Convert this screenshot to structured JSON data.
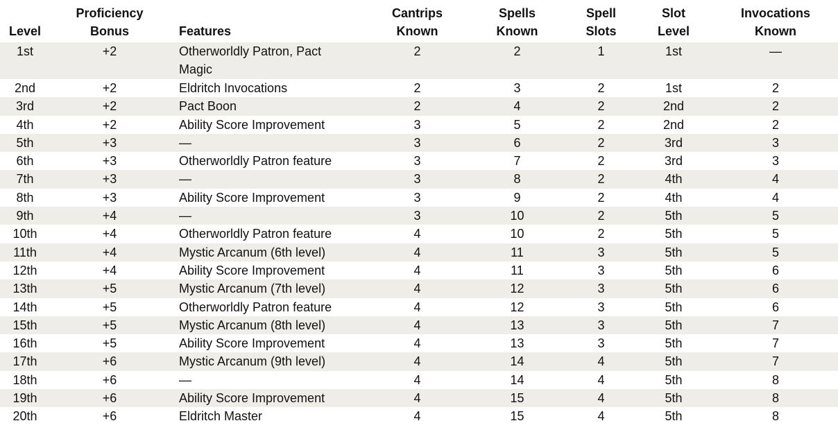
{
  "columns": [
    {
      "line1": "",
      "line2": "Level"
    },
    {
      "line1": "Proficiency",
      "line2": "Bonus"
    },
    {
      "line1": "",
      "line2": "Features"
    },
    {
      "line1": "Cantrips",
      "line2": "Known"
    },
    {
      "line1": "Spells",
      "line2": "Known"
    },
    {
      "line1": "Spell",
      "line2": "Slots"
    },
    {
      "line1": "Slot",
      "line2": "Level"
    },
    {
      "line1": "Invocations",
      "line2": "Known"
    }
  ],
  "rows": [
    [
      "1st",
      "+2",
      "Otherworldly Patron, Pact Magic",
      "2",
      "2",
      "1",
      "1st",
      "—"
    ],
    [
      "2nd",
      "+2",
      "Eldritch Invocations",
      "2",
      "3",
      "2",
      "1st",
      "2"
    ],
    [
      "3rd",
      "+2",
      "Pact Boon",
      "2",
      "4",
      "2",
      "2nd",
      "2"
    ],
    [
      "4th",
      "+2",
      "Ability Score Improvement",
      "3",
      "5",
      "2",
      "2nd",
      "2"
    ],
    [
      "5th",
      "+3",
      "—",
      "3",
      "6",
      "2",
      "3rd",
      "3"
    ],
    [
      "6th",
      "+3",
      "Otherworldly Patron feature",
      "3",
      "7",
      "2",
      "3rd",
      "3"
    ],
    [
      "7th",
      "+3",
      "—",
      "3",
      "8",
      "2",
      "4th",
      "4"
    ],
    [
      "8th",
      "+3",
      "Ability Score Improvement",
      "3",
      "9",
      "2",
      "4th",
      "4"
    ],
    [
      "9th",
      "+4",
      "—",
      "3",
      "10",
      "2",
      "5th",
      "5"
    ],
    [
      "10th",
      "+4",
      "Otherworldly Patron feature",
      "4",
      "10",
      "2",
      "5th",
      "5"
    ],
    [
      "11th",
      "+4",
      "Mystic Arcanum (6th level)",
      "4",
      "11",
      "3",
      "5th",
      "5"
    ],
    [
      "12th",
      "+4",
      "Ability Score Improvement",
      "4",
      "11",
      "3",
      "5th",
      "6"
    ],
    [
      "13th",
      "+5",
      "Mystic Arcanum (7th level)",
      "4",
      "12",
      "3",
      "5th",
      "6"
    ],
    [
      "14th",
      "+5",
      "Otherworldly Patron feature",
      "4",
      "12",
      "3",
      "5th",
      "6"
    ],
    [
      "15th",
      "+5",
      "Mystic Arcanum (8th level)",
      "4",
      "13",
      "3",
      "5th",
      "7"
    ],
    [
      "16th",
      "+5",
      "Ability Score Improvement",
      "4",
      "13",
      "3",
      "5th",
      "7"
    ],
    [
      "17th",
      "+6",
      "Mystic Arcanum (9th level)",
      "4",
      "14",
      "4",
      "5th",
      "7"
    ],
    [
      "18th",
      "+6",
      "—",
      "4",
      "14",
      "4",
      "5th",
      "8"
    ],
    [
      "19th",
      "+6",
      "Ability Score Improvement",
      "4",
      "15",
      "4",
      "5th",
      "8"
    ],
    [
      "20th",
      "+6",
      "Eldritch Master",
      "4",
      "15",
      "4",
      "5th",
      "8"
    ]
  ],
  "colors": {
    "shade": "#efede7",
    "text": "#111111"
  }
}
